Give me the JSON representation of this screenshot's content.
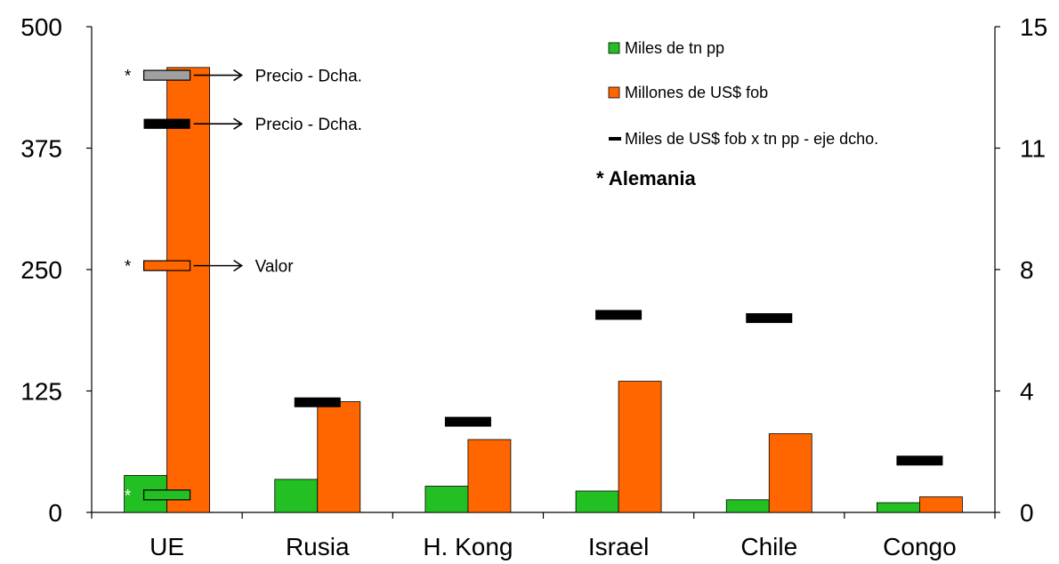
{
  "chart_data": {
    "type": "bar",
    "categories": [
      "UE",
      "Rusia",
      "H. Kong",
      "Israel",
      "Chile",
      "Congo"
    ],
    "series": [
      {
        "name": "Miles de tn pp",
        "axis": "left",
        "kind": "bar",
        "color": "#22c022",
        "values": [
          38,
          34,
          27,
          22,
          13,
          10
        ]
      },
      {
        "name": "Millones de US$ fob",
        "axis": "left",
        "kind": "bar",
        "color": "#ff6600",
        "values": [
          458,
          114,
          75,
          135,
          81,
          16
        ]
      },
      {
        "name": "Miles de US$ fob x tn pp - eje dcho.",
        "axis": "right",
        "kind": "marker",
        "color": "#000000",
        "values": [
          12.0,
          3.4,
          2.8,
          6.1,
          6.0,
          1.6
        ]
      }
    ],
    "left_axis": {
      "ylim": [
        0,
        500
      ],
      "ticks": [
        "0",
        "125",
        "250",
        "375",
        "500"
      ]
    },
    "right_axis": {
      "ylim": [
        0,
        15
      ],
      "ticks": [
        "0",
        "4",
        "8",
        "11",
        "15"
      ]
    },
    "legend_position": "top-right",
    "note": "* Alemania",
    "annotations": [
      {
        "star": "*",
        "label": "Precio - Dcha.",
        "marker_color": "#a0a0a0",
        "value_right": 13.5
      },
      {
        "star": "",
        "label": "Precio - Dcha.",
        "marker_color": "#000000",
        "value_right": 12.0
      },
      {
        "star": "*",
        "label": "Valor",
        "marker_color": "#ff6600",
        "value_left": 254
      },
      {
        "star": "*",
        "label": "",
        "marker_color": "#22c022",
        "value_left": 18
      }
    ]
  }
}
